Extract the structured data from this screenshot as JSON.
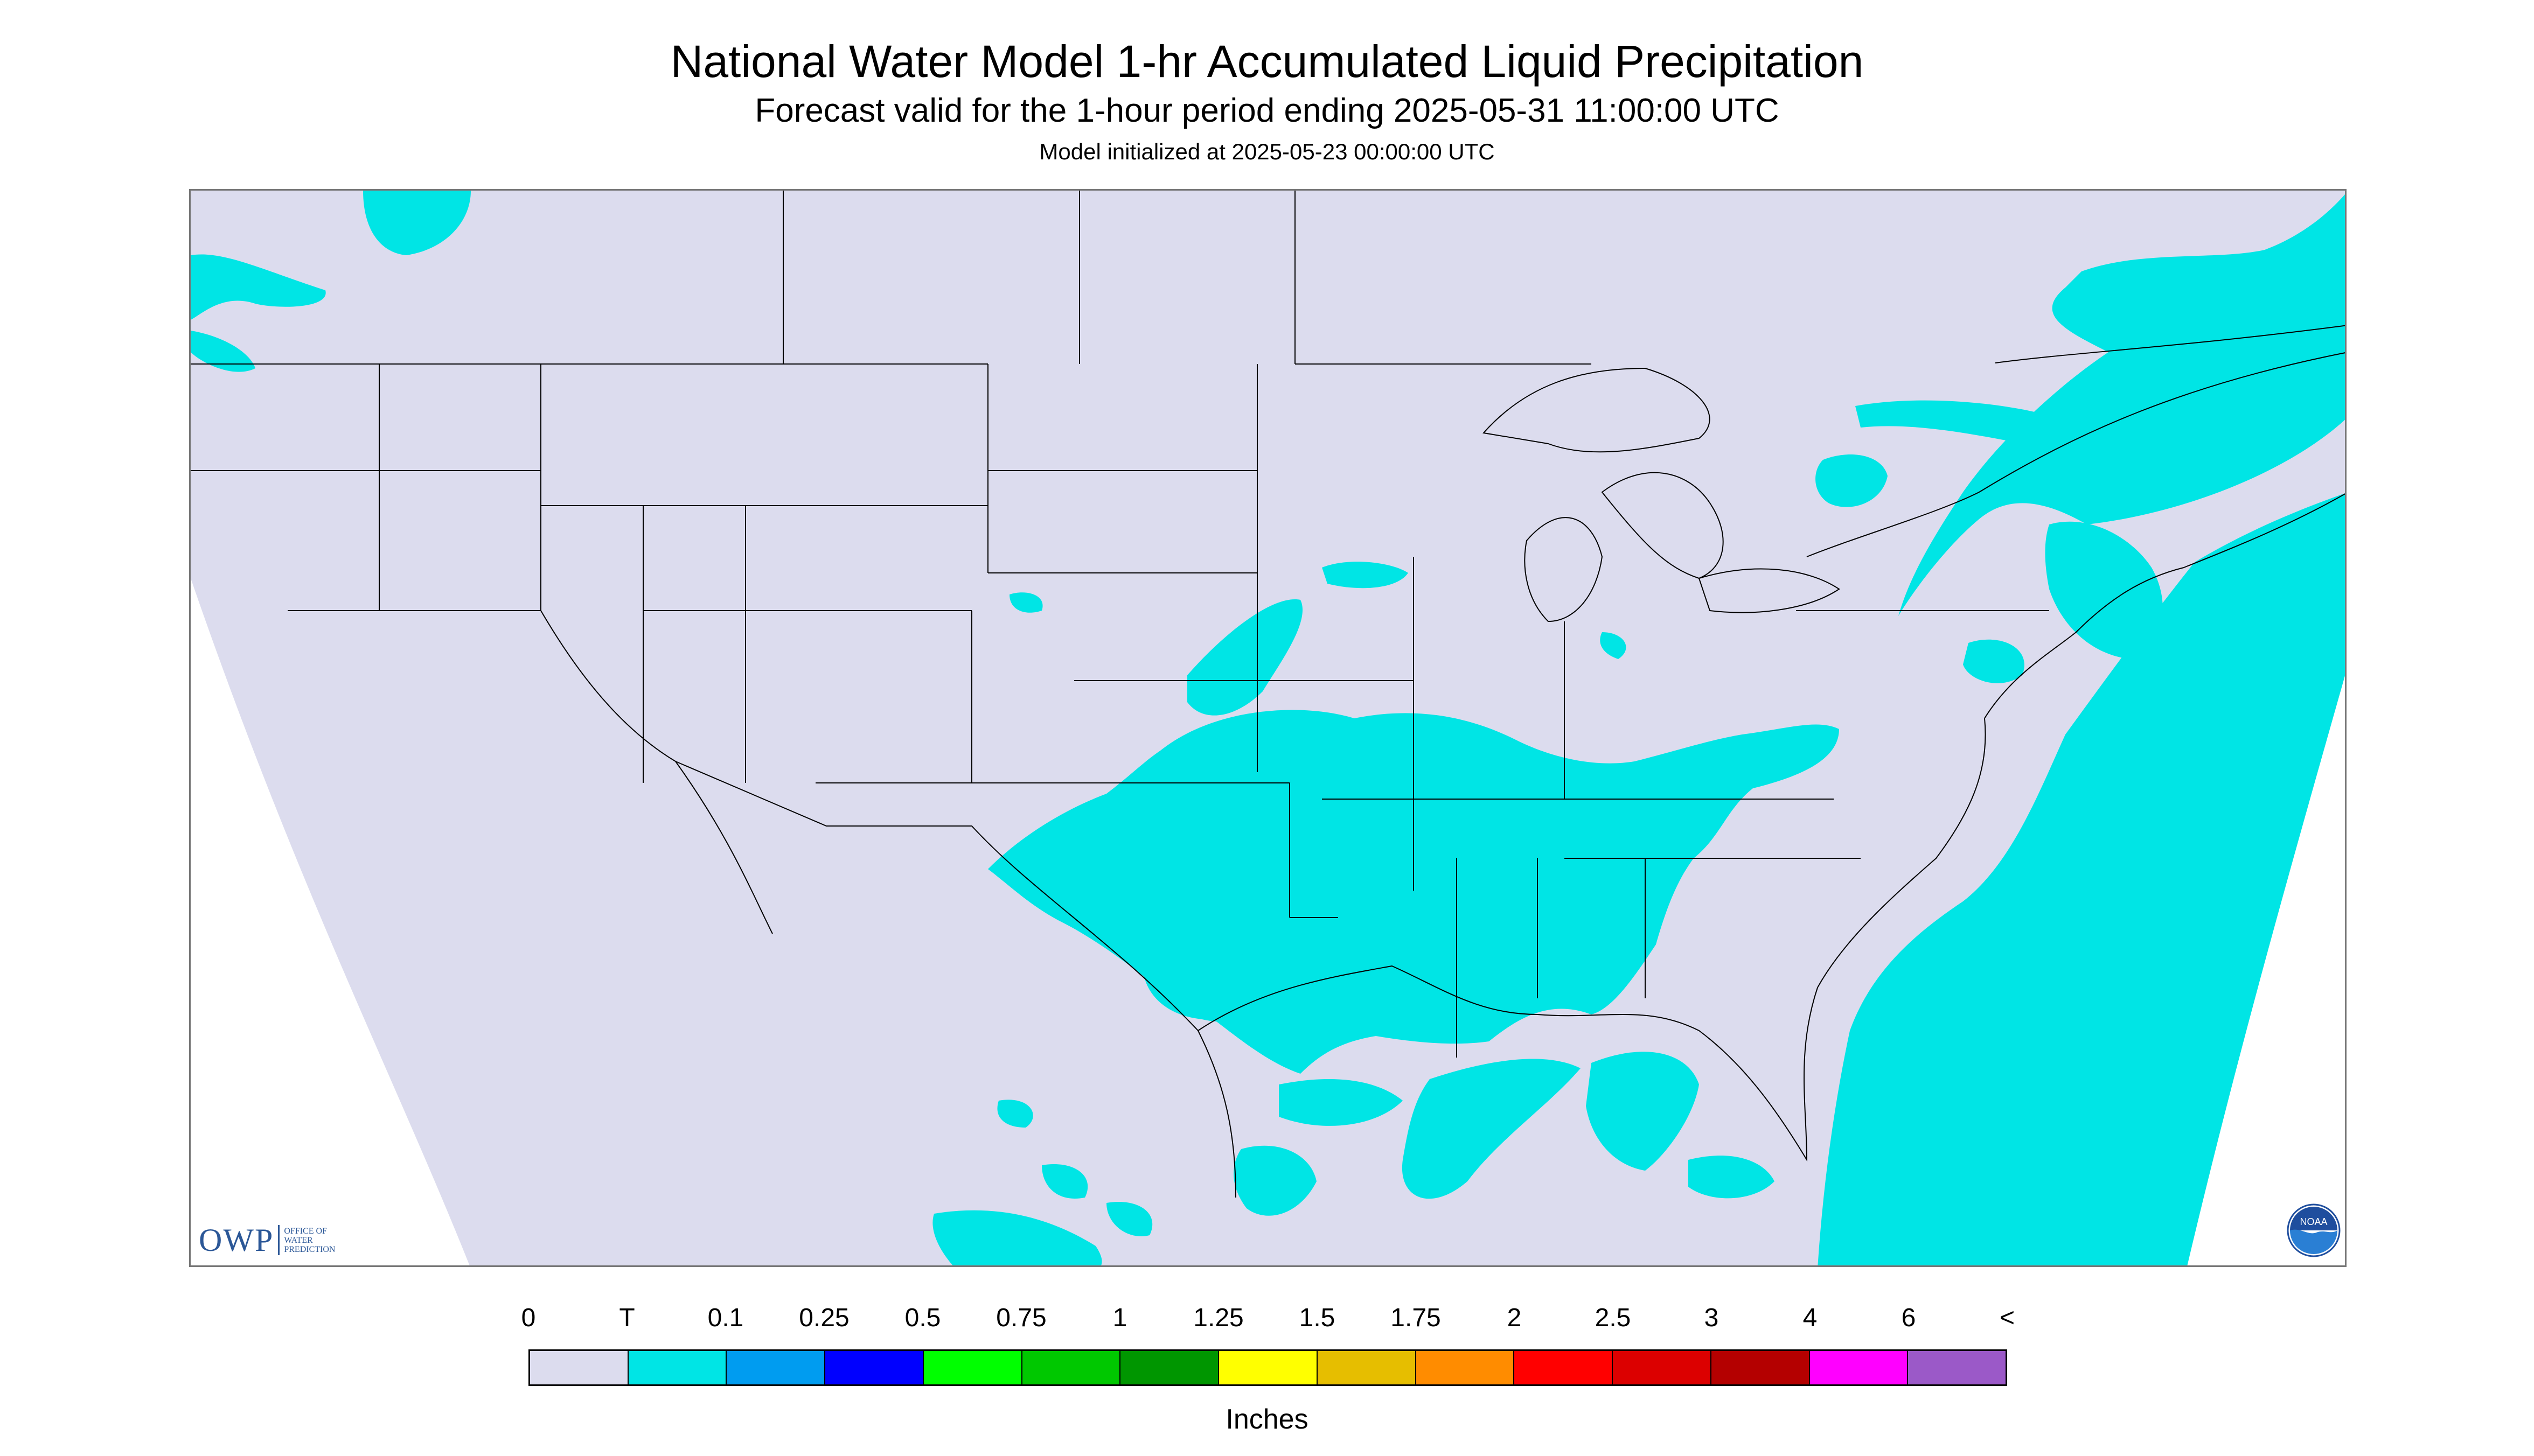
{
  "title": "National Water Model 1-hr Accumulated Liquid Precipitation",
  "subtitle": "Forecast valid for the 1-hour period ending 2025-05-31 11:00:00 UTC",
  "init_line": "Model initialized at 2025-05-23 00:00:00 UTC",
  "logos": {
    "owp_mark": "OWP",
    "owp_text": "OFFICE OF WATER PREDICTION",
    "noaa_text": "NOAA"
  },
  "colors": {
    "no_data_domain": "#ffffff",
    "zero": "#dcdcee",
    "trace": "#00e5e5",
    "boundary": "#000000"
  },
  "legend": {
    "units": "Inches",
    "ticks": [
      "0",
      "T",
      "0.1",
      "0.25",
      "0.5",
      "0.75",
      "1",
      "1.25",
      "1.5",
      "1.75",
      "2",
      "2.5",
      "3",
      "4",
      "6",
      "<"
    ],
    "colors": [
      "#dcdcee",
      "#00e5e5",
      "#009cf0",
      "#0000ff",
      "#00ff00",
      "#00c800",
      "#009600",
      "#ffff00",
      "#e6be00",
      "#ff8c00",
      "#ff0000",
      "#dc0000",
      "#b40000",
      "#ff00ff",
      "#9b59c8"
    ]
  },
  "map": {
    "region": "Contiguous United States",
    "precip_category_shown": "T"
  }
}
